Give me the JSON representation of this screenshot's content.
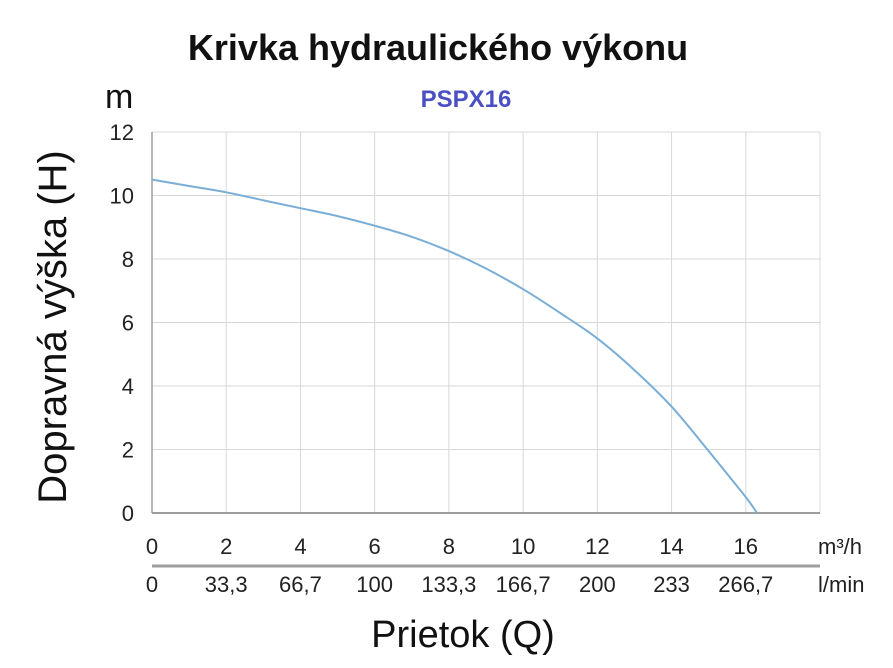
{
  "chart_data": {
    "type": "line",
    "title": "Krivka hydraulického výkonu",
    "subtitle": "PSPX16",
    "y_unit": "m",
    "ylabel": "Dopravná výška (H)",
    "xlabel": "Prietok (Q)",
    "x_unit_primary": "m³/h",
    "x_unit_secondary": "l/min",
    "xlim": [
      0,
      18
    ],
    "ylim": [
      0,
      12
    ],
    "grid": true,
    "y_ticks": [
      "0",
      "2",
      "4",
      "6",
      "8",
      "10",
      "12"
    ],
    "x_ticks_primary": [
      "0",
      "2",
      "4",
      "6",
      "8",
      "10",
      "12",
      "14",
      "16"
    ],
    "x_ticks_secondary": [
      "0",
      "33,3",
      "66,7",
      "100",
      "133,3",
      "166,7",
      "200",
      "233",
      "266,7"
    ],
    "series": [
      {
        "x": [
          0,
          1,
          2,
          3,
          4,
          5,
          6,
          7,
          8,
          9,
          10,
          11,
          12,
          13,
          14,
          15,
          16,
          16.3
        ],
        "y": [
          10.5,
          10.3,
          10.1,
          9.85,
          9.6,
          9.35,
          9.05,
          8.7,
          8.25,
          7.7,
          7.05,
          6.3,
          5.5,
          4.5,
          3.35,
          1.95,
          0.5,
          0
        ]
      }
    ],
    "colors": {
      "line": "#7aaed6",
      "grid": "#d8d8d8",
      "axis": "#9e9e9e",
      "subtitle": "#4a4fc4"
    }
  }
}
